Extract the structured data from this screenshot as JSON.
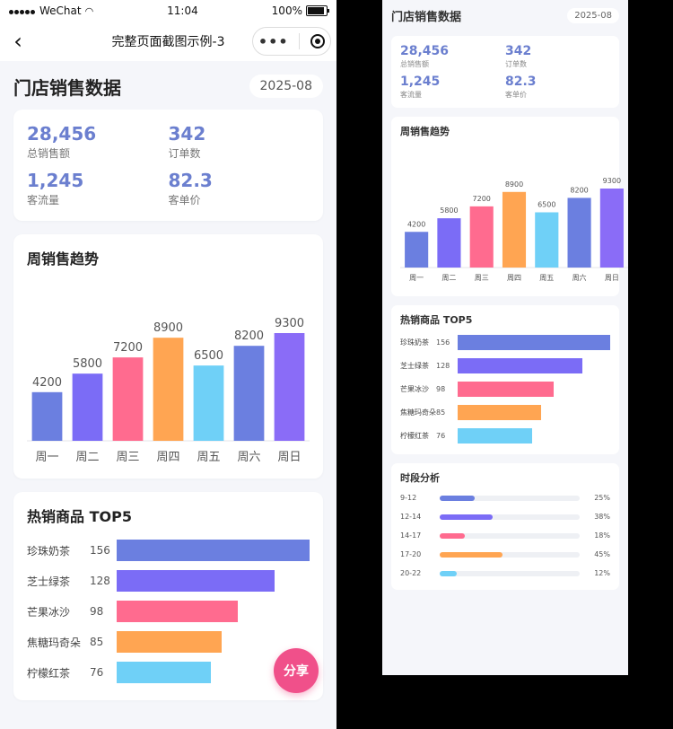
{
  "status": {
    "carrier": "WeChat",
    "time": "11:04",
    "battery": "100%"
  },
  "nav": {
    "title": "完整页面截图示例-3",
    "more": "•••"
  },
  "page": {
    "title": "门店销售数据",
    "date": "2025-08"
  },
  "kpis": [
    {
      "value": "28,456",
      "label": "总销售额"
    },
    {
      "value": "342",
      "label": "订单数"
    },
    {
      "value": "1,245",
      "label": "客流量"
    },
    {
      "value": "82.3",
      "label": "客单价"
    }
  ],
  "weekly": {
    "title": "周销售趋势",
    "chart_data": {
      "type": "bar",
      "categories": [
        "周一",
        "周二",
        "周三",
        "周四",
        "周五",
        "周六",
        "周日"
      ],
      "values": [
        4200,
        5800,
        7200,
        8900,
        6500,
        8200,
        9300
      ],
      "colors": [
        "#6b7fe0",
        "#7b6cf6",
        "#ff6b8f",
        "#ffa552",
        "#6fd0f7",
        "#6b7fe0",
        "#8a6cf7"
      ],
      "ylim": [
        0,
        9300
      ]
    }
  },
  "top5": {
    "title": "热销商品 TOP5",
    "chart_data": {
      "type": "bar",
      "categories": [
        "珍珠奶茶",
        "芝士绿茶",
        "芒果冰沙",
        "焦糖玛奇朵",
        "柠檬红茶"
      ],
      "values": [
        156,
        128,
        98,
        85,
        76
      ],
      "colors": [
        "#6b7fe0",
        "#7b6cf6",
        "#ff6b8f",
        "#ffa552",
        "#6fd0f7"
      ],
      "xlim": [
        0,
        156
      ]
    }
  },
  "period": {
    "title": "时段分析",
    "items": [
      {
        "label": "9-12",
        "percent": 25,
        "text": "25%",
        "color": "#6b7fe0"
      },
      {
        "label": "12-14",
        "percent": 38,
        "text": "38%",
        "color": "#7b6cf6"
      },
      {
        "label": "14-17",
        "percent": 18,
        "text": "18%",
        "color": "#ff6b8f"
      },
      {
        "label": "17-20",
        "percent": 45,
        "text": "45%",
        "color": "#ffa552"
      },
      {
        "label": "20-22",
        "percent": 12,
        "text": "12%",
        "color": "#6fd0f7"
      }
    ]
  },
  "share_label": "分享"
}
